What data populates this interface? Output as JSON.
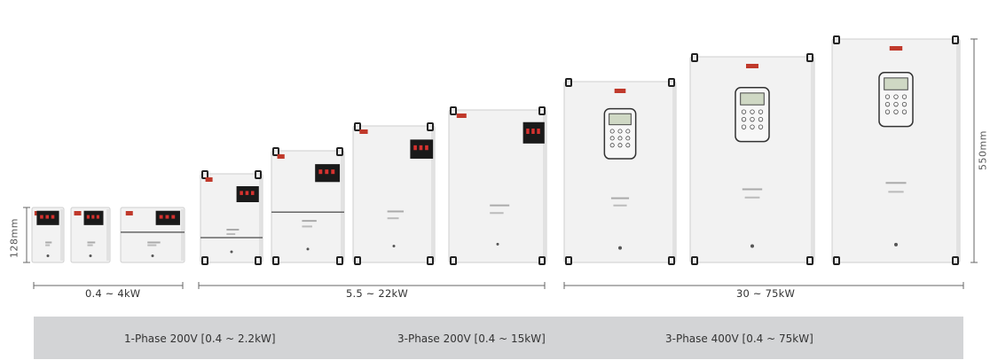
{
  "dimensions": {
    "small_height": "128mm",
    "large_height": "550mm"
  },
  "ranges": [
    {
      "label": "0.4 ~ 4kW"
    },
    {
      "label": "5.5 ~ 22kW"
    },
    {
      "label": "30 ~ 75kW"
    }
  ],
  "specs": [
    {
      "label": "1-Phase 200V [0.4 ~ 2.2kW]"
    },
    {
      "label": "3-Phase 200V [0.4 ~ 15kW]"
    },
    {
      "label": "3-Phase 400V [0.4 ~ 75kW]"
    }
  ],
  "colors": {
    "housing": "#f2f2f2",
    "housing_edge": "#cfcfcf",
    "display": "#1a1a1a",
    "led": "#d6322f",
    "brand_badge": "#c0392b",
    "spec_bar": "#d3d4d6"
  }
}
